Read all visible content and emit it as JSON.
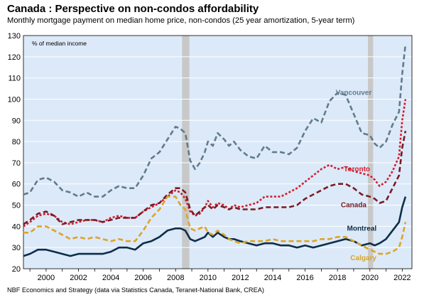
{
  "chart_data": {
    "type": "line",
    "title": "Canada : Perspective on non-condos affordability",
    "subtitle": "Monthly mortgage payment on median home price, non-condos (25 year amortization, 5-year term)",
    "ylabel": "% of median income",
    "source": "NBF Economics and Strategy (data via Statistics Canada, Teranet-National Bank, CREA)",
    "xlim": [
      1998.6,
      2022.6
    ],
    "ylim": [
      20,
      130
    ],
    "yticks": [
      20,
      30,
      40,
      50,
      60,
      70,
      80,
      90,
      100,
      110,
      120,
      130
    ],
    "xticks": [
      2000,
      2002,
      2004,
      2006,
      2008,
      2010,
      2012,
      2014,
      2016,
      2018,
      2020,
      2022
    ],
    "xtick_labels": [
      "2000",
      "2002",
      "2004",
      "2006",
      "2008",
      "2010",
      "2012",
      "2014",
      "2016",
      "2018",
      "2020",
      "2022"
    ],
    "grid": true,
    "recessions": [
      {
        "start": 2008.4,
        "end": 2008.85
      },
      {
        "start": 2019.88,
        "end": 2020.2
      }
    ],
    "colors": {
      "background": "#dce9f8",
      "recession": "#c8c8c8",
      "vancouver": "#607b8d",
      "toronto": "#d21e2d",
      "canada": "#7a1c24",
      "montreal": "#0d2e4a",
      "calgary": "#dca428"
    },
    "series": [
      {
        "name": "Vancouver",
        "key": "vancouver",
        "dash": "dash",
        "x": [
          1998.6,
          1999,
          1999.5,
          2000,
          2000.5,
          2001,
          2001.5,
          2002,
          2002.5,
          2003,
          2003.5,
          2004,
          2004.5,
          2005,
          2005.5,
          2006,
          2006.5,
          2007,
          2007.5,
          2008,
          2008.3,
          2008.6,
          2008.9,
          2009.2,
          2009.5,
          2009.8,
          2010,
          2010.3,
          2010.6,
          2011,
          2011.3,
          2011.6,
          2012,
          2012.5,
          2013,
          2013.5,
          2014,
          2014.5,
          2015,
          2015.5,
          2016,
          2016.5,
          2017,
          2017.5,
          2018,
          2018.5,
          2019,
          2019.5,
          2020,
          2020.3,
          2020.6,
          2021,
          2021.4,
          2021.8,
          2022,
          2022.2
        ],
        "values": [
          55,
          56,
          62,
          63,
          61,
          57,
          56,
          54,
          56,
          54,
          54,
          57,
          59,
          58,
          58,
          64,
          72,
          75,
          81,
          87,
          86,
          84,
          71,
          67,
          70,
          75,
          80,
          78,
          84,
          81,
          78,
          80,
          76,
          73,
          72,
          78,
          75,
          75,
          74,
          77,
          85,
          91,
          89,
          99,
          103,
          102,
          93,
          84,
          83,
          79,
          77,
          80,
          88,
          94,
          112,
          126
        ]
      },
      {
        "name": "Toronto",
        "key": "toronto",
        "dash": "dot",
        "x": [
          1998.6,
          1999,
          1999.5,
          2000,
          2000.5,
          2001,
          2001.5,
          2002,
          2002.5,
          2003,
          2003.5,
          2004,
          2004.5,
          2005,
          2005.5,
          2006,
          2006.5,
          2007,
          2007.5,
          2008,
          2008.3,
          2008.6,
          2008.9,
          2009.2,
          2009.5,
          2009.8,
          2010,
          2010.3,
          2010.6,
          2011,
          2011.3,
          2011.6,
          2012,
          2012.5,
          2013,
          2013.5,
          2014,
          2014.5,
          2015,
          2015.5,
          2016,
          2016.5,
          2017,
          2017.5,
          2018,
          2018.5,
          2019,
          2019.5,
          2020,
          2020.3,
          2020.6,
          2021,
          2021.4,
          2021.8,
          2022,
          2022.2
        ],
        "values": [
          40,
          42,
          45,
          46,
          45,
          42,
          41,
          42,
          43,
          43,
          42,
          44,
          45,
          44,
          44,
          47,
          49,
          51,
          54,
          57,
          56,
          53,
          47,
          45,
          46,
          49,
          52,
          49,
          51,
          50,
          48,
          50,
          49,
          50,
          51,
          54,
          54,
          54,
          56,
          58,
          61,
          64,
          67,
          69,
          67,
          68,
          66,
          65,
          64,
          62,
          59,
          61,
          66,
          73,
          90,
          100
        ]
      },
      {
        "name": "Canada",
        "key": "canada",
        "dash": "dash",
        "x": [
          1998.6,
          1999,
          1999.5,
          2000,
          2000.5,
          2001,
          2001.5,
          2002,
          2002.5,
          2003,
          2003.5,
          2004,
          2004.5,
          2005,
          2005.5,
          2006,
          2006.5,
          2007,
          2007.5,
          2008,
          2008.3,
          2008.6,
          2008.9,
          2009.2,
          2009.5,
          2009.8,
          2010,
          2010.3,
          2010.6,
          2011,
          2011.3,
          2011.6,
          2012,
          2012.5,
          2013,
          2013.5,
          2014,
          2014.5,
          2015,
          2015.5,
          2016,
          2016.5,
          2017,
          2017.5,
          2018,
          2018.5,
          2019,
          2019.5,
          2020,
          2020.3,
          2020.6,
          2021,
          2021.4,
          2021.8,
          2022,
          2022.2
        ],
        "values": [
          41,
          43,
          46,
          47,
          45,
          41,
          42,
          43,
          43,
          43,
          42,
          43,
          44,
          44,
          44,
          47,
          50,
          51,
          55,
          58,
          58,
          56,
          48,
          45,
          47,
          49,
          50,
          48,
          50,
          49,
          48,
          49,
          48,
          48,
          48,
          49,
          49,
          49,
          49,
          50,
          53,
          55,
          57,
          59,
          60,
          60,
          58,
          55,
          54,
          53,
          51,
          52,
          58,
          64,
          77,
          85
        ]
      },
      {
        "name": "Montreal",
        "key": "montreal",
        "dash": "solid",
        "x": [
          1998.6,
          1999,
          1999.5,
          2000,
          2000.5,
          2001,
          2001.5,
          2002,
          2002.5,
          2003,
          2003.5,
          2004,
          2004.5,
          2005,
          2005.5,
          2006,
          2006.5,
          2007,
          2007.5,
          2008,
          2008.3,
          2008.6,
          2008.9,
          2009.2,
          2009.5,
          2009.8,
          2010,
          2010.3,
          2010.6,
          2011,
          2011.3,
          2011.6,
          2012,
          2012.5,
          2013,
          2013.5,
          2014,
          2014.5,
          2015,
          2015.5,
          2016,
          2016.5,
          2017,
          2017.5,
          2018,
          2018.5,
          2019,
          2019.5,
          2020,
          2020.3,
          2020.6,
          2021,
          2021.4,
          2021.8,
          2022,
          2022.2
        ],
        "values": [
          26,
          27,
          29,
          29,
          28,
          27,
          26,
          27,
          27,
          27,
          27,
          28,
          30,
          30,
          29,
          32,
          33,
          35,
          38,
          39,
          39,
          38,
          34,
          33,
          34,
          35,
          37,
          35,
          37,
          35,
          34,
          34,
          33,
          32,
          31,
          32,
          32,
          31,
          31,
          30,
          31,
          30,
          31,
          32,
          33,
          34,
          33,
          31,
          32,
          31,
          32,
          34,
          38,
          42,
          49,
          54
        ]
      },
      {
        "name": "Calgary",
        "key": "calgary",
        "dash": "dash",
        "x": [
          1998.6,
          1999,
          1999.5,
          2000,
          2000.5,
          2001,
          2001.5,
          2002,
          2002.5,
          2003,
          2003.5,
          2004,
          2004.5,
          2005,
          2005.5,
          2006,
          2006.5,
          2007,
          2007.5,
          2008,
          2008.3,
          2008.6,
          2008.9,
          2009.2,
          2009.5,
          2009.8,
          2010,
          2010.3,
          2010.6,
          2011,
          2011.3,
          2011.6,
          2012,
          2012.5,
          2013,
          2013.5,
          2014,
          2014.5,
          2015,
          2015.5,
          2016,
          2016.5,
          2017,
          2017.5,
          2018,
          2018.5,
          2019,
          2019.5,
          2020,
          2020.3,
          2020.6,
          2021,
          2021.4,
          2021.8,
          2022,
          2022.2
        ],
        "values": [
          37,
          37,
          40,
          40,
          38,
          36,
          34,
          35,
          34,
          35,
          34,
          33,
          34,
          33,
          33,
          38,
          44,
          48,
          54,
          54,
          50,
          48,
          39,
          38,
          39,
          40,
          37,
          36,
          38,
          36,
          34,
          33,
          32,
          33,
          33,
          33,
          34,
          33,
          33,
          33,
          33,
          33,
          34,
          34,
          35,
          35,
          33,
          31,
          29,
          28,
          27,
          27,
          28,
          30,
          35,
          42
        ]
      }
    ],
    "labels": [
      {
        "key": "vancouver",
        "text": "Vancouver",
        "x": 2019.0,
        "y": 102
      },
      {
        "key": "toronto",
        "text": "Toronto",
        "x": 2019.2,
        "y": 66
      },
      {
        "key": "canada",
        "text": "Canada",
        "x": 2019.0,
        "y": 49
      },
      {
        "key": "montreal",
        "text": "Montreal",
        "x": 2019.5,
        "y": 38
      },
      {
        "key": "calgary",
        "text": "Calgary",
        "x": 2019.6,
        "y": 24
      }
    ]
  }
}
